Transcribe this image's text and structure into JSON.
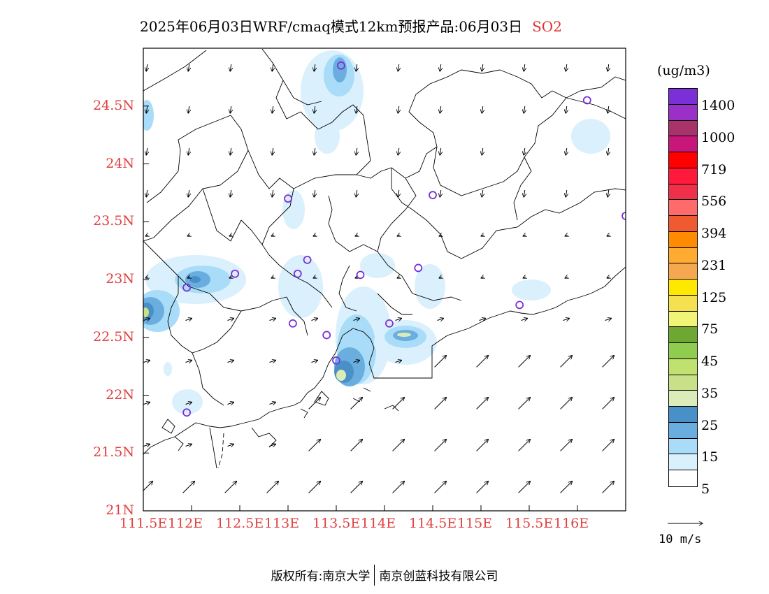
{
  "title": {
    "main": "2025年06月03日WRF/cmaq模式12km预报产品:06月03日",
    "variable": "SO2"
  },
  "units_label": "(ug/m3)",
  "axes": {
    "lat_ticks": [
      "24.5N",
      "24N",
      "23.5N",
      "23N",
      "22.5N",
      "22N",
      "21.5N",
      "21N"
    ],
    "lon_ticks": [
      "111.5E",
      "112E",
      "112.5E",
      "113E",
      "113.5E",
      "114E",
      "114.5E",
      "115E",
      "115.5E",
      "116E"
    ],
    "lon_range": [
      111.5,
      116.5
    ],
    "lat_range": [
      21.0,
      25.0
    ]
  },
  "legend": {
    "colors": [
      "#7b2fd6",
      "#9b30c8",
      "#a8326a",
      "#c8167a",
      "#ff0000",
      "#ff1a3c",
      "#f0304a",
      "#ff6a6a",
      "#f05a30",
      "#ff8c00",
      "#ffaa30",
      "#f5a850",
      "#ffe800",
      "#f5e050",
      "#f0f578",
      "#6ea832",
      "#90cc50",
      "#c0e070",
      "#c8e088",
      "#dcecb8",
      "#4a90c8",
      "#6aaee0",
      "#a8dcf8",
      "#daf0fc",
      "#ffffff"
    ],
    "labels": [
      "1400",
      "1000",
      "719",
      "556",
      "394",
      "231",
      "125",
      "75",
      "45",
      "35",
      "25",
      "15",
      "5"
    ]
  },
  "wind_reference": "10 m/s",
  "stations": [
    {
      "lon": 113.55,
      "lat": 24.85
    },
    {
      "lon": 116.1,
      "lat": 24.55
    },
    {
      "lon": 113.0,
      "lat": 23.7
    },
    {
      "lon": 114.5,
      "lat": 23.73
    },
    {
      "lon": 116.5,
      "lat": 23.55
    },
    {
      "lon": 112.45,
      "lat": 23.05
    },
    {
      "lon": 111.95,
      "lat": 22.93
    },
    {
      "lon": 113.1,
      "lat": 23.05
    },
    {
      "lon": 113.2,
      "lat": 23.17
    },
    {
      "lon": 113.75,
      "lat": 23.04
    },
    {
      "lon": 114.35,
      "lat": 23.1
    },
    {
      "lon": 115.4,
      "lat": 22.78
    },
    {
      "lon": 113.05,
      "lat": 22.62
    },
    {
      "lon": 113.4,
      "lat": 22.52
    },
    {
      "lon": 114.05,
      "lat": 22.62
    },
    {
      "lon": 113.5,
      "lat": 22.3
    },
    {
      "lon": 111.95,
      "lat": 21.85
    }
  ],
  "footer": {
    "left": "版权所有:南京大学",
    "right": "南京创蓝科技有限公司"
  }
}
